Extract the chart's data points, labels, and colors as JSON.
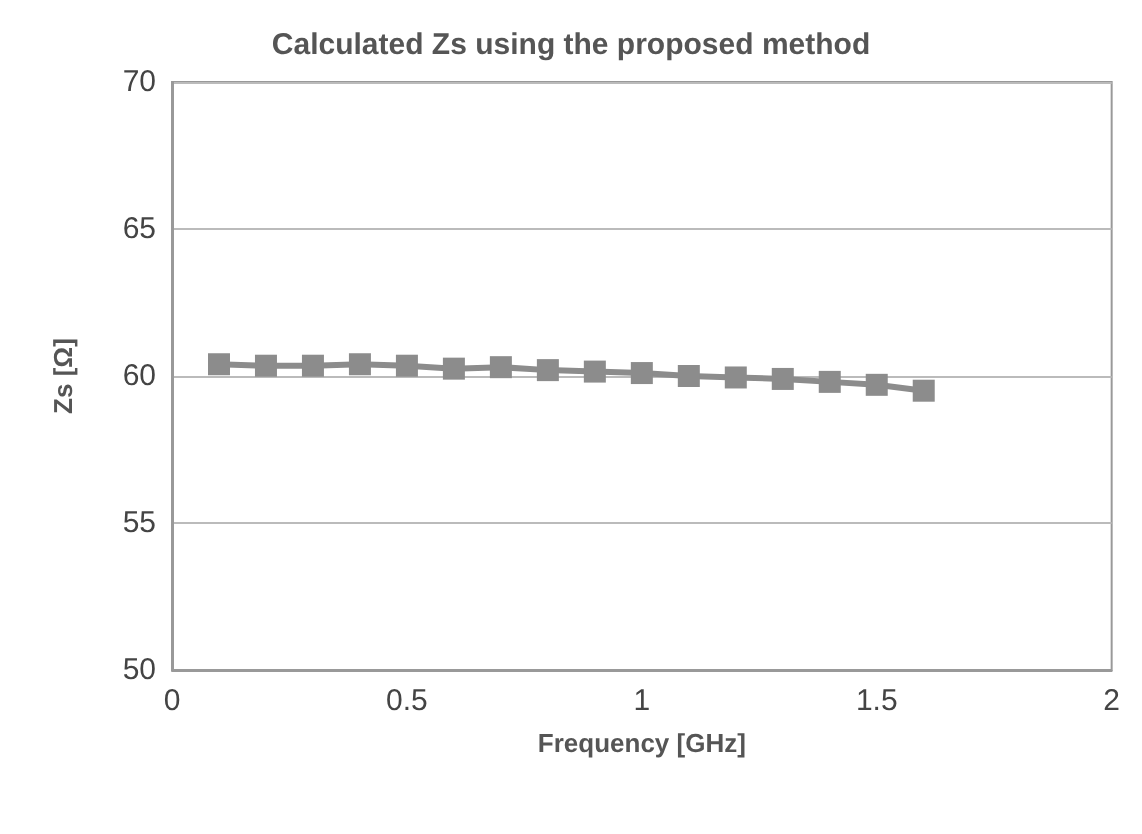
{
  "chart_data": {
    "type": "line",
    "title": "Calculated Zs using the proposed method",
    "xlabel": "Frequency [GHz]",
    "ylabel": "Zs [Ω]",
    "x": [
      0.1,
      0.2,
      0.3,
      0.4,
      0.5,
      0.6,
      0.7,
      0.8,
      0.9,
      1.0,
      1.1,
      1.2,
      1.3,
      1.4,
      1.5,
      1.6
    ],
    "series": [
      {
        "color": "#8c8c8c",
        "values": [
          60.4,
          60.35,
          60.35,
          60.4,
          60.35,
          60.25,
          60.3,
          60.2,
          60.15,
          60.1,
          60.0,
          59.95,
          59.9,
          59.8,
          59.7,
          59.5
        ]
      }
    ],
    "xlim": [
      0,
      2
    ],
    "xticks": [
      0,
      0.5,
      1,
      1.5,
      2
    ],
    "ylim": [
      50,
      70
    ],
    "yticks": [
      50,
      55,
      60,
      65,
      70
    ],
    "grid": "y",
    "marker": "square",
    "line_style": "solid"
  }
}
